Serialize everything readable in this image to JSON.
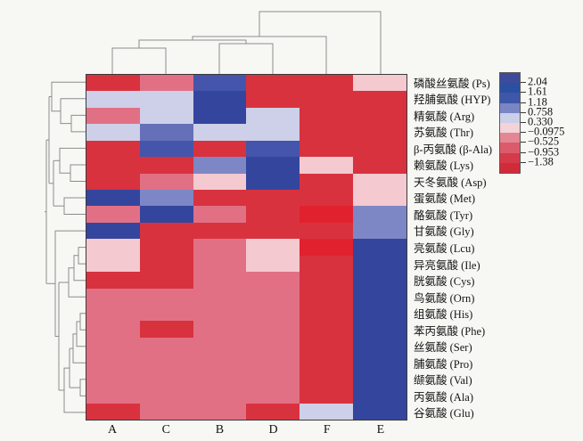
{
  "chart_data": {
    "type": "heatmap",
    "title": "",
    "description": "Hierarchically clustered heatmap of amino acid levels across samples A, C, B, D, F, E with row and column dendrograms and a discrete red-blue z-score color scale.",
    "columns": [
      "A",
      "C",
      "B",
      "D",
      "F",
      "E"
    ],
    "rows": [
      "磷酸丝氨酸 (Ps)",
      "羟脯氨酸 (HYP)",
      "精氨酸 (Arg)",
      "苏氨酸 (Thr)",
      "β-丙氨酸 (β-Ala)",
      "赖氨酸 (Lys)",
      "天冬氨酸 (Asp)",
      "蛋氨酸 (Met)",
      "酪氨酸 (Tyr)",
      "甘氨酸 (Gly)",
      "亮氨酸 (Lcu)",
      "异亮氨酸 (Ile)",
      "胱氨酸 (Cys)",
      "鸟氨酸 (Orn)",
      "组氨酸 (His)",
      "苯丙氨酸 (Phe)",
      "丝氨酸 (Ser)",
      "脯氨酸 (Pro)",
      "缬氨酸 (Val)",
      "丙氨酸 (Ala)",
      "谷氨酸 (Glu)"
    ],
    "palette": {
      "b3": "#34459e",
      "b2": "#4455ab",
      "b15": "#6570b8",
      "b1": "#7d87c5",
      "lav": "#cdd0e8",
      "pp": "#f4c9d0",
      "pk": "#e27084",
      "rd": "#d8323f",
      "cr": "#e2212f"
    },
    "palette_approx_z": {
      "b3": 1.9,
      "b2": 1.3,
      "b15": 0.95,
      "b1": 0.75,
      "lav": 0.45,
      "pp": 0.05,
      "pk": -0.35,
      "rd": -1.1,
      "cr": -1.5
    },
    "cells": [
      [
        "rd",
        "pk",
        "b2",
        "rd",
        "rd",
        "pp"
      ],
      [
        "lav",
        "lav",
        "b3",
        "rd",
        "rd",
        "rd"
      ],
      [
        "pk",
        "lav",
        "b3",
        "lav",
        "rd",
        "rd"
      ],
      [
        "lav",
        "b15",
        "lav",
        "lav",
        "rd",
        "rd"
      ],
      [
        "rd",
        "b2",
        "rd",
        "b2",
        "rd",
        "rd"
      ],
      [
        "rd",
        "rd",
        "b1",
        "b3",
        "pp",
        "rd"
      ],
      [
        "rd",
        "pk",
        "pp",
        "b3",
        "rd",
        "pp"
      ],
      [
        "b3",
        "b1",
        "rd",
        "rd",
        "rd",
        "pp"
      ],
      [
        "pk",
        "b3",
        "pk",
        "rd",
        "cr",
        "b1"
      ],
      [
        "b3",
        "rd",
        "rd",
        "rd",
        "rd",
        "b1"
      ],
      [
        "pp",
        "rd",
        "pk",
        "pp",
        "cr",
        "b3"
      ],
      [
        "pp",
        "rd",
        "pk",
        "pp",
        "rd",
        "b3"
      ],
      [
        "rd",
        "rd",
        "pk",
        "pk",
        "rd",
        "b3"
      ],
      [
        "pk",
        "pk",
        "pk",
        "pk",
        "rd",
        "b3"
      ],
      [
        "pk",
        "pk",
        "pk",
        "pk",
        "rd",
        "b3"
      ],
      [
        "pk",
        "rd",
        "pk",
        "pk",
        "rd",
        "b3"
      ],
      [
        "pk",
        "pk",
        "pk",
        "pk",
        "rd",
        "b3"
      ],
      [
        "pk",
        "pk",
        "pk",
        "pk",
        "rd",
        "b3"
      ],
      [
        "pk",
        "pk",
        "pk",
        "pk",
        "rd",
        "b3"
      ],
      [
        "pk",
        "pk",
        "pk",
        "pk",
        "rd",
        "b3"
      ],
      [
        "rd",
        "pk",
        "pk",
        "rd",
        "lav",
        "b3"
      ]
    ],
    "legend": {
      "tick_labels": [
        "2.04",
        "1.61",
        "1.18",
        "0.758",
        "0.330",
        "−0.0975",
        "−0.525",
        "−0.953",
        "−1.38"
      ],
      "block_colors": [
        "#3e4b9a",
        "#2b50a1",
        "#3e57a8",
        "#7a85c3",
        "#cbcfe7",
        "#f3d3d8",
        "#e28793",
        "#db5b6b",
        "#d43a49",
        "#d12b3a"
      ]
    },
    "dendrogram_color": "#8c8c8c",
    "col_dendrogram_lines": [
      [
        [
          126,
          83
        ],
        [
          126,
          54
        ],
        [
          186,
          54
        ],
        [
          186,
          83
        ]
      ],
      [
        [
          156,
          54
        ],
        [
          156,
          45
        ],
        [
          276,
          45
        ],
        [
          276,
          49
        ]
      ],
      [
        [
          246,
          83
        ],
        [
          246,
          49
        ],
        [
          306,
          49
        ],
        [
          306,
          83
        ]
      ],
      [
        [
          216,
          45
        ],
        [
          216,
          41
        ],
        [
          366,
          41
        ],
        [
          366,
          83
        ]
      ],
      [
        [
          291,
          41
        ],
        [
          291,
          13
        ],
        [
          427,
          13
        ],
        [
          427,
          83
        ]
      ]
    ],
    "row_dendrogram_lines": [
      [
        [
          96,
          129.4
        ],
        [
          80,
          129.4
        ],
        [
          80,
          147.9
        ],
        [
          96,
          147.9
        ]
      ],
      [
        [
          80,
          138.6
        ],
        [
          68,
          138.6
        ],
        [
          68,
          110.8
        ],
        [
          96,
          110.8
        ]
      ],
      [
        [
          68,
          124.7
        ],
        [
          58,
          124.7
        ],
        [
          58,
          92.3
        ],
        [
          96,
          92.3
        ]
      ],
      [
        [
          58,
          108.5
        ],
        [
          55,
          108.5
        ]
      ],
      [
        [
          96,
          185.0
        ],
        [
          79,
          185.0
        ],
        [
          79,
          203.5
        ],
        [
          96,
          203.5
        ]
      ],
      [
        [
          79,
          194.2
        ],
        [
          67,
          194.2
        ],
        [
          67,
          166.4
        ],
        [
          96,
          166.4
        ]
      ],
      [
        [
          67,
          180.3
        ],
        [
          60,
          180.3
        ]
      ],
      [
        [
          96,
          222.0
        ],
        [
          72,
          222.0
        ],
        [
          72,
          240.5
        ],
        [
          96,
          240.5
        ]
      ],
      [
        [
          72,
          231.2
        ],
        [
          60,
          231.2
        ]
      ],
      [
        [
          60,
          180.3
        ],
        [
          60,
          231.2
        ]
      ],
      [
        [
          60,
          205.8
        ],
        [
          55,
          205.8
        ]
      ],
      [
        [
          55,
          108.5
        ],
        [
          55,
          205.8
        ]
      ],
      [
        [
          55,
          157.1
        ],
        [
          52,
          157.1
        ]
      ],
      [
        [
          96,
          277.6
        ],
        [
          88,
          277.6
        ],
        [
          88,
          296.1
        ],
        [
          96,
          296.1
        ]
      ],
      [
        [
          88,
          286.8
        ],
        [
          83,
          286.8
        ],
        [
          83,
          314.7
        ],
        [
          96,
          314.7
        ]
      ],
      [
        [
          83,
          300.8
        ],
        [
          77,
          300.8
        ],
        [
          77,
          333.2
        ],
        [
          96,
          333.2
        ]
      ],
      [
        [
          77,
          317.0
        ],
        [
          66,
          317.0
        ]
      ],
      [
        [
          96,
          351.7
        ],
        [
          90,
          351.7
        ],
        [
          90,
          370.2
        ],
        [
          96,
          370.2
        ]
      ],
      [
        [
          90,
          361.0
        ],
        [
          86,
          361.0
        ],
        [
          86,
          388.8
        ],
        [
          96,
          388.8
        ]
      ],
      [
        [
          86,
          374.9
        ],
        [
          82,
          374.9
        ],
        [
          82,
          407.3
        ],
        [
          96,
          407.3
        ]
      ],
      [
        [
          82,
          391.1
        ],
        [
          78,
          391.1
        ]
      ],
      [
        [
          96,
          425.8
        ],
        [
          90,
          425.8
        ],
        [
          90,
          444.4
        ],
        [
          96,
          444.4
        ]
      ],
      [
        [
          90,
          435.1
        ],
        [
          78,
          435.1
        ]
      ],
      [
        [
          78,
          391.1
        ],
        [
          78,
          435.1
        ]
      ],
      [
        [
          78,
          413.1
        ],
        [
          72,
          413.1
        ],
        [
          72,
          462.9
        ],
        [
          96,
          462.9
        ]
      ],
      [
        [
          72,
          438.0
        ],
        [
          66,
          438.0
        ]
      ],
      [
        [
          66,
          317.0
        ],
        [
          66,
          438.0
        ]
      ],
      [
        [
          66,
          377.5
        ],
        [
          62,
          377.5
        ],
        [
          62,
          259.1
        ],
        [
          96,
          259.1
        ]
      ],
      [
        [
          62,
          318.3
        ],
        [
          52,
          318.3
        ]
      ],
      [
        [
          52,
          157.1
        ],
        [
          52,
          318.3
        ]
      ],
      [
        [
          52,
          237.7
        ],
        [
          50,
          237.7
        ]
      ]
    ]
  }
}
